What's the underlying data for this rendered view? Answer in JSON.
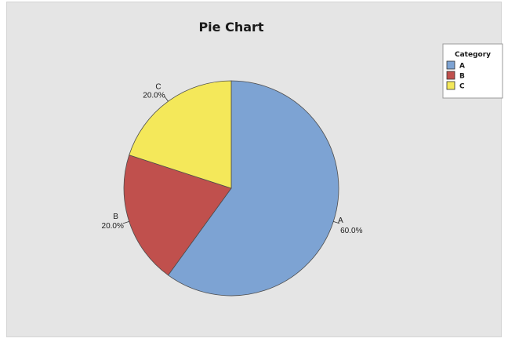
{
  "chart_data": {
    "type": "pie",
    "title": "Pie Chart",
    "slices": [
      {
        "label": "A",
        "value": 60.0,
        "percent_label": "60.0%",
        "color": "#7da3d3"
      },
      {
        "label": "B",
        "value": 20.0,
        "percent_label": "20.0%",
        "color": "#c0504d"
      },
      {
        "label": "C",
        "value": 20.0,
        "percent_label": "20.0%",
        "color": "#f4e85a"
      }
    ],
    "start_angle_deg": 0,
    "direction": "clockwise",
    "legend": {
      "title": "Category",
      "placement": "top-right",
      "items": [
        "A",
        "B",
        "C"
      ]
    }
  },
  "colors": {
    "background": "#e5e5e5",
    "slice_border": "#4d4d4d"
  }
}
